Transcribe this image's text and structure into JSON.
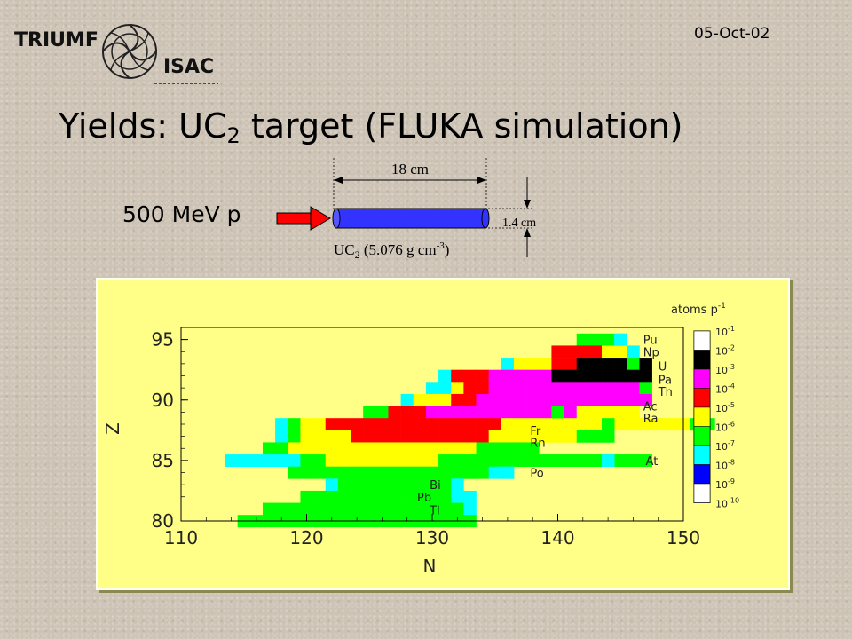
{
  "header": {
    "logo_text_triumf": "TRIUMF",
    "logo_text_isac": "ISAC",
    "date": "05-Oct-02"
  },
  "title": {
    "prefix": "Yields: UC",
    "sub": "2",
    "suffix": " target (FLUKA simulation)"
  },
  "setup": {
    "beam_label": "500 MeV p",
    "length_label": "18 cm",
    "diameter_label": "1.4 cm",
    "material_prefix": "UC",
    "material_sub": "2",
    "material_mid": " (5.076 g cm",
    "material_sup": "-3",
    "material_suffix": ")"
  },
  "colors": {
    "panel": "#ffff88",
    "level_1e-1": "#ffffff",
    "level_1e-2": "#000000",
    "level_1e-3": "#ff00ff",
    "level_1e-4": "#ff0000",
    "level_1e-5": "#ffff00",
    "level_1e-6": "#00ff00",
    "level_1e-7": "#00ffff",
    "level_1e-8": "#0000ff",
    "level_1e-9": "#ffffff",
    "beam_arrow": "#ff0000",
    "target": "#3333ff"
  },
  "chart_data": {
    "type": "heatmap",
    "xlabel": "N",
    "ylabel": "Z",
    "xlim": [
      110,
      150
    ],
    "ylim": [
      80,
      96
    ],
    "xticks": [
      "110",
      "120",
      "130",
      "140",
      "150"
    ],
    "yticks": [
      "80",
      "85",
      "90",
      "95"
    ],
    "legend": {
      "title": "atoms p",
      "title_sup": "-1",
      "labels": [
        {
          "base": "10",
          "exp": "-1"
        },
        {
          "base": "10",
          "exp": "-2"
        },
        {
          "base": "10",
          "exp": "-3"
        },
        {
          "base": "10",
          "exp": "-4"
        },
        {
          "base": "10",
          "exp": "-5"
        },
        {
          "base": "10",
          "exp": "-6"
        },
        {
          "base": "10",
          "exp": "-7"
        },
        {
          "base": "10",
          "exp": "-8"
        },
        {
          "base": "10",
          "exp": "-9"
        },
        {
          "base": "10",
          "exp": "-10"
        }
      ],
      "placement": "right"
    },
    "color_key": {
      "w": "level_1e-1",
      "k": "level_1e-2",
      "m": "level_1e-3",
      "r": "level_1e-4",
      "y": "level_1e-5",
      "g": "level_1e-6",
      "c": "level_1e-7",
      "b": "level_1e-8"
    },
    "rows": [
      {
        "Z": 95,
        "N": 142,
        "cells": "gggc"
      },
      {
        "Z": 94,
        "N": 140,
        "cells": "rrrryyc"
      },
      {
        "Z": 93,
        "N": 136,
        "cells": "cyyyrrkkkkgk"
      },
      {
        "Z": 92,
        "N": 131,
        "cells": "crrrmmmmmkkkkkkkk"
      },
      {
        "Z": 91,
        "N": 130,
        "cells": "ccyrrmmmmmmmmmmmmg"
      },
      {
        "Z": 90,
        "N": 128,
        "cells": "cyyyrrmmmmmmmmmmmmmm"
      },
      {
        "Z": 89,
        "N": 125,
        "cells": "ggrrrmmmmmmmmmmmmyyyyy"
      },
      {
        "Z": 88,
        "N": 118,
        "cells": "cgyyrrrrrrrrrrrrrryyyyyyyyyyyyyyygg"
      },
      {
        "Z": 87,
        "N": 118,
        "cells": "cgyyyyrrrrrrrrrrryyyyyyyggg"
      },
      {
        "Z": 86,
        "N": 117,
        "cells": "ggyyyyyyyyyyyyyyyggggg"
      },
      {
        "Z": 85,
        "N": 114,
        "cells": "ccccccggyyyyyyyyyggggggggggggggggg"
      },
      {
        "Z": 84,
        "N": 119,
        "cells": "ggggggggggggggggcc"
      },
      {
        "Z": 83,
        "N": 122,
        "cells": "cgggggggggc"
      },
      {
        "Z": 82,
        "N": 120,
        "cells": "ggggggggggggcc"
      },
      {
        "Z": 81,
        "N": 117,
        "cells": "ggggggggggggggggc"
      },
      {
        "Z": 80,
        "N": 115,
        "cells": "ggggggggggggggggggg"
      }
    ],
    "extra_cells": [
      {
        "N": 133,
        "Z": 84,
        "c": "g"
      },
      {
        "N": 136,
        "Z": 84,
        "c": "c"
      },
      {
        "N": 144,
        "Z": 85,
        "c": "c"
      },
      {
        "N": 140,
        "Z": 89,
        "c": "g"
      },
      {
        "N": 144,
        "Z": 88,
        "c": "g"
      },
      {
        "N": 145,
        "Z": 95,
        "c": "c"
      }
    ],
    "element_labels": [
      {
        "text": "Pu",
        "N": 146.8,
        "Z": 95.0
      },
      {
        "text": "Np",
        "N": 146.8,
        "Z": 94.0
      },
      {
        "text": "U",
        "N": 148.0,
        "Z": 92.8
      },
      {
        "text": "Pa",
        "N": 148.0,
        "Z": 91.7
      },
      {
        "text": "Th",
        "N": 148.0,
        "Z": 90.7
      },
      {
        "text": "Ac",
        "N": 146.8,
        "Z": 89.5
      },
      {
        "text": "Ra",
        "N": 146.8,
        "Z": 88.5
      },
      {
        "text": "Fr",
        "N": 137.8,
        "Z": 87.5
      },
      {
        "text": "Rn",
        "N": 137.8,
        "Z": 86.5
      },
      {
        "text": "At",
        "N": 147.0,
        "Z": 85.0
      },
      {
        "text": "Po",
        "N": 137.8,
        "Z": 84.0
      },
      {
        "text": "Bi",
        "N": 129.8,
        "Z": 83.0
      },
      {
        "text": "Pb",
        "N": 128.8,
        "Z": 82.0
      },
      {
        "text": "Tl",
        "N": 129.8,
        "Z": 80.9
      }
    ]
  }
}
